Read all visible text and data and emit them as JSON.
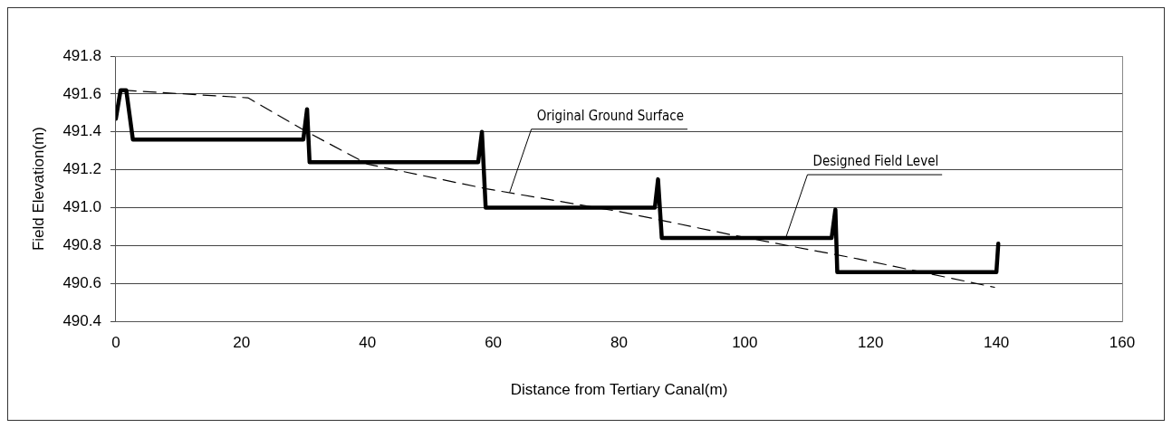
{
  "chart_data": {
    "type": "line",
    "xlabel": "Distance from Tertiary Canal(m)",
    "ylabel": "Field Elevation(m)",
    "xlim": [
      0,
      160
    ],
    "xticks": [
      0,
      20,
      40,
      60,
      80,
      100,
      120,
      140,
      160
    ],
    "ylim": [
      490.4,
      491.8
    ],
    "yticks": [
      490.4,
      490.6,
      490.8,
      {
        "value": 491,
        "label": "491.0"
      },
      491.2,
      491.4,
      491.6,
      491.8
    ],
    "grid": "y",
    "legend": false,
    "marker": "none",
    "series": [
      {
        "color": "#000000",
        "line_style": "solid",
        "x": [
          0,
          0.75,
          1.65,
          2.7,
          29.8,
          30.4,
          30.8,
          57.6,
          58.2,
          58.8,
          85.7,
          86.2,
          86.8,
          113.8,
          114.4,
          114.7,
          140,
          140.3
        ],
        "values": [
          491.47,
          491.62,
          491.62,
          491.36,
          491.36,
          491.52,
          491.24,
          491.24,
          491.4,
          491,
          491,
          491.15,
          490.84,
          490.84,
          490.99,
          490.66,
          490.66,
          490.81
        ]
      },
      {
        "color": "#000000",
        "line_style": "dashed",
        "x": [
          1.2,
          21,
          30.4,
          40,
          58.9,
          80,
          98.9,
          118,
          139.7
        ],
        "values": [
          491.62,
          491.58,
          491.4,
          491.23,
          491.1,
          490.98,
          490.85,
          490.73,
          490.58
        ]
      }
    ],
    "annotations": [
      {
        "text": "Original Ground Surface",
        "x": 62.6,
        "y": 491.08
      },
      {
        "text": "Designed Field Level",
        "x": 106.5,
        "y": 490.84
      }
    ]
  }
}
